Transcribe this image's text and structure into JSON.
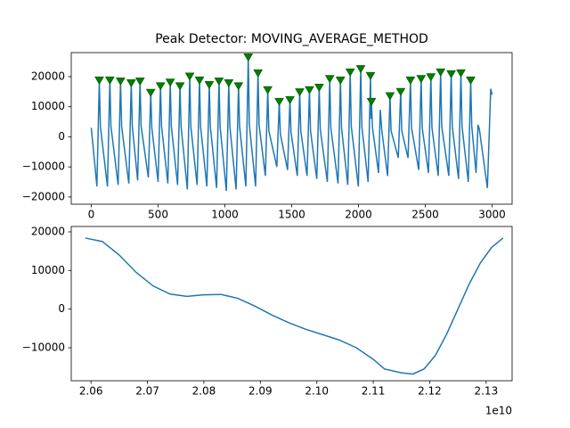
{
  "chart_data": [
    {
      "type": "line",
      "title": "Peak Detector: MOVING_AVERAGE_METHOD",
      "xlim": [
        -150,
        3150
      ],
      "ylim": [
        -22400,
        28000
      ],
      "xticks": [
        0,
        500,
        1000,
        1500,
        2000,
        2500,
        3000
      ],
      "yticks": [
        {
          "value": -20000,
          "label": "−20000"
        },
        {
          "value": -10000,
          "label": "−10000"
        },
        0,
        10000,
        20000
      ],
      "series": [
        {
          "color": "#1f77b4",
          "x": [
            0,
            42,
            60,
            68,
            121,
            139,
            147,
            201,
            219,
            227,
            281,
            299,
            307,
            347,
            365,
            373,
            427,
            445,
            453,
            500,
            518,
            526,
            573,
            591,
            599,
            646,
            664,
            672,
            719,
            737,
            745,
            792,
            810,
            818,
            865,
            883,
            891,
            938,
            956,
            964,
            1011,
            1029,
            1037,
            1084,
            1102,
            1110,
            1157,
            1175,
            1183,
            1230,
            1248,
            1256,
            1303,
            1321,
            1329,
            1389,
            1407,
            1415,
            1469,
            1487,
            1495,
            1542,
            1560,
            1568,
            1615,
            1633,
            1641,
            1688,
            1706,
            1714,
            1767,
            1785,
            1793,
            1847,
            1865,
            1873,
            1920,
            1938,
            1946,
            1999,
            2017,
            2025,
            2072,
            2090,
            2094,
            2097,
            2105,
            2150,
            2163,
            2175,
            2218,
            2236,
            2244,
            2298,
            2316,
            2324,
            2371,
            2389,
            2397,
            2451,
            2469,
            2477,
            2524,
            2542,
            2550,
            2597,
            2615,
            2623,
            2676,
            2694,
            2702,
            2749,
            2767,
            2775,
            2822,
            2840,
            2848,
            2880,
            2895,
            2905,
            2965,
            2990,
            3000
          ],
          "values": [
            3000,
            -16500,
            18800,
            3500,
            -16500,
            18800,
            3500,
            -16000,
            18500,
            3500,
            -15500,
            17900,
            3500,
            -14500,
            18500,
            3500,
            -13500,
            14700,
            3000,
            -15000,
            16900,
            3500,
            -15500,
            18100,
            3500,
            -16000,
            16900,
            3500,
            -17500,
            20100,
            3500,
            -16000,
            18800,
            3500,
            -16500,
            17300,
            3500,
            -17000,
            18500,
            3500,
            -18000,
            17900,
            3500,
            -17500,
            16900,
            3500,
            -16500,
            26500,
            4000,
            -16500,
            21200,
            4000,
            -13000,
            15600,
            2000,
            -10000,
            11700,
            1000,
            -11000,
            12300,
            1500,
            -13000,
            14900,
            2000,
            -13000,
            15600,
            2000,
            -14000,
            16400,
            2500,
            -15000,
            19300,
            3000,
            -15500,
            18800,
            3000,
            -16000,
            21500,
            3500,
            -16500,
            22600,
            3500,
            -15000,
            20300,
            6000,
            11700,
            3000,
            -12000,
            9000,
            2000,
            -13000,
            13600,
            2000,
            -7000,
            15000,
            2000,
            -7000,
            18800,
            3000,
            -11000,
            19300,
            3000,
            -12000,
            19900,
            3000,
            -13000,
            21500,
            3500,
            -13000,
            20900,
            3500,
            -14000,
            21200,
            3500,
            -15000,
            18800,
            3500,
            -12000,
            4000,
            2500,
            -17000,
            16000,
            14000
          ]
        }
      ],
      "markers": {
        "color": "green",
        "edge_color": "#006400",
        "x": [
          60,
          139,
          219,
          299,
          365,
          445,
          518,
          591,
          664,
          737,
          810,
          883,
          956,
          1029,
          1102,
          1175,
          1248,
          1321,
          1407,
          1487,
          1560,
          1633,
          1706,
          1785,
          1865,
          1938,
          2017,
          2090,
          2097,
          2236,
          2316,
          2389,
          2469,
          2542,
          2615,
          2694,
          2767,
          2840
        ],
        "values": [
          18800,
          18800,
          18500,
          17900,
          18500,
          14700,
          16900,
          18100,
          16900,
          20100,
          18800,
          17300,
          18500,
          17900,
          16900,
          26500,
          21200,
          15600,
          11700,
          12300,
          14900,
          15600,
          16400,
          19300,
          18800,
          21500,
          22600,
          20300,
          11700,
          13600,
          15000,
          18800,
          19300,
          19900,
          21500,
          20900,
          21200,
          18800
        ]
      }
    },
    {
      "type": "line",
      "xlim": [
        2.0565,
        2.1346
      ],
      "ylim": [
        -18540,
        21385
      ],
      "xticks": [
        2.06,
        2.07,
        2.08,
        2.09,
        {
          "value": 2.1,
          "label": "2.10"
        },
        2.11,
        2.12,
        2.13
      ],
      "yticks": [
        {
          "value": -10000,
          "label": "−10000"
        },
        0,
        10000,
        20000
      ],
      "x_offset_label": "1e10",
      "series": [
        {
          "color": "#1f77b4",
          "x": [
            2.059,
            2.062,
            2.065,
            2.068,
            2.071,
            2.074,
            2.077,
            2.08,
            2.083,
            2.086,
            2.089,
            2.092,
            2.095,
            2.098,
            2.101,
            2.104,
            2.107,
            2.11,
            2.112,
            2.115,
            2.117,
            2.119,
            2.121,
            2.123,
            2.125,
            2.127,
            2.129,
            2.131,
            2.133
          ],
          "values": [
            18400,
            17500,
            14000,
            9500,
            6000,
            3900,
            3300,
            3700,
            3800,
            2800,
            800,
            -1500,
            -3500,
            -5200,
            -6600,
            -8000,
            -10000,
            -13000,
            -15500,
            -16500,
            -16800,
            -15500,
            -12000,
            -6500,
            0,
            6500,
            12000,
            16000,
            18400
          ]
        }
      ]
    }
  ]
}
